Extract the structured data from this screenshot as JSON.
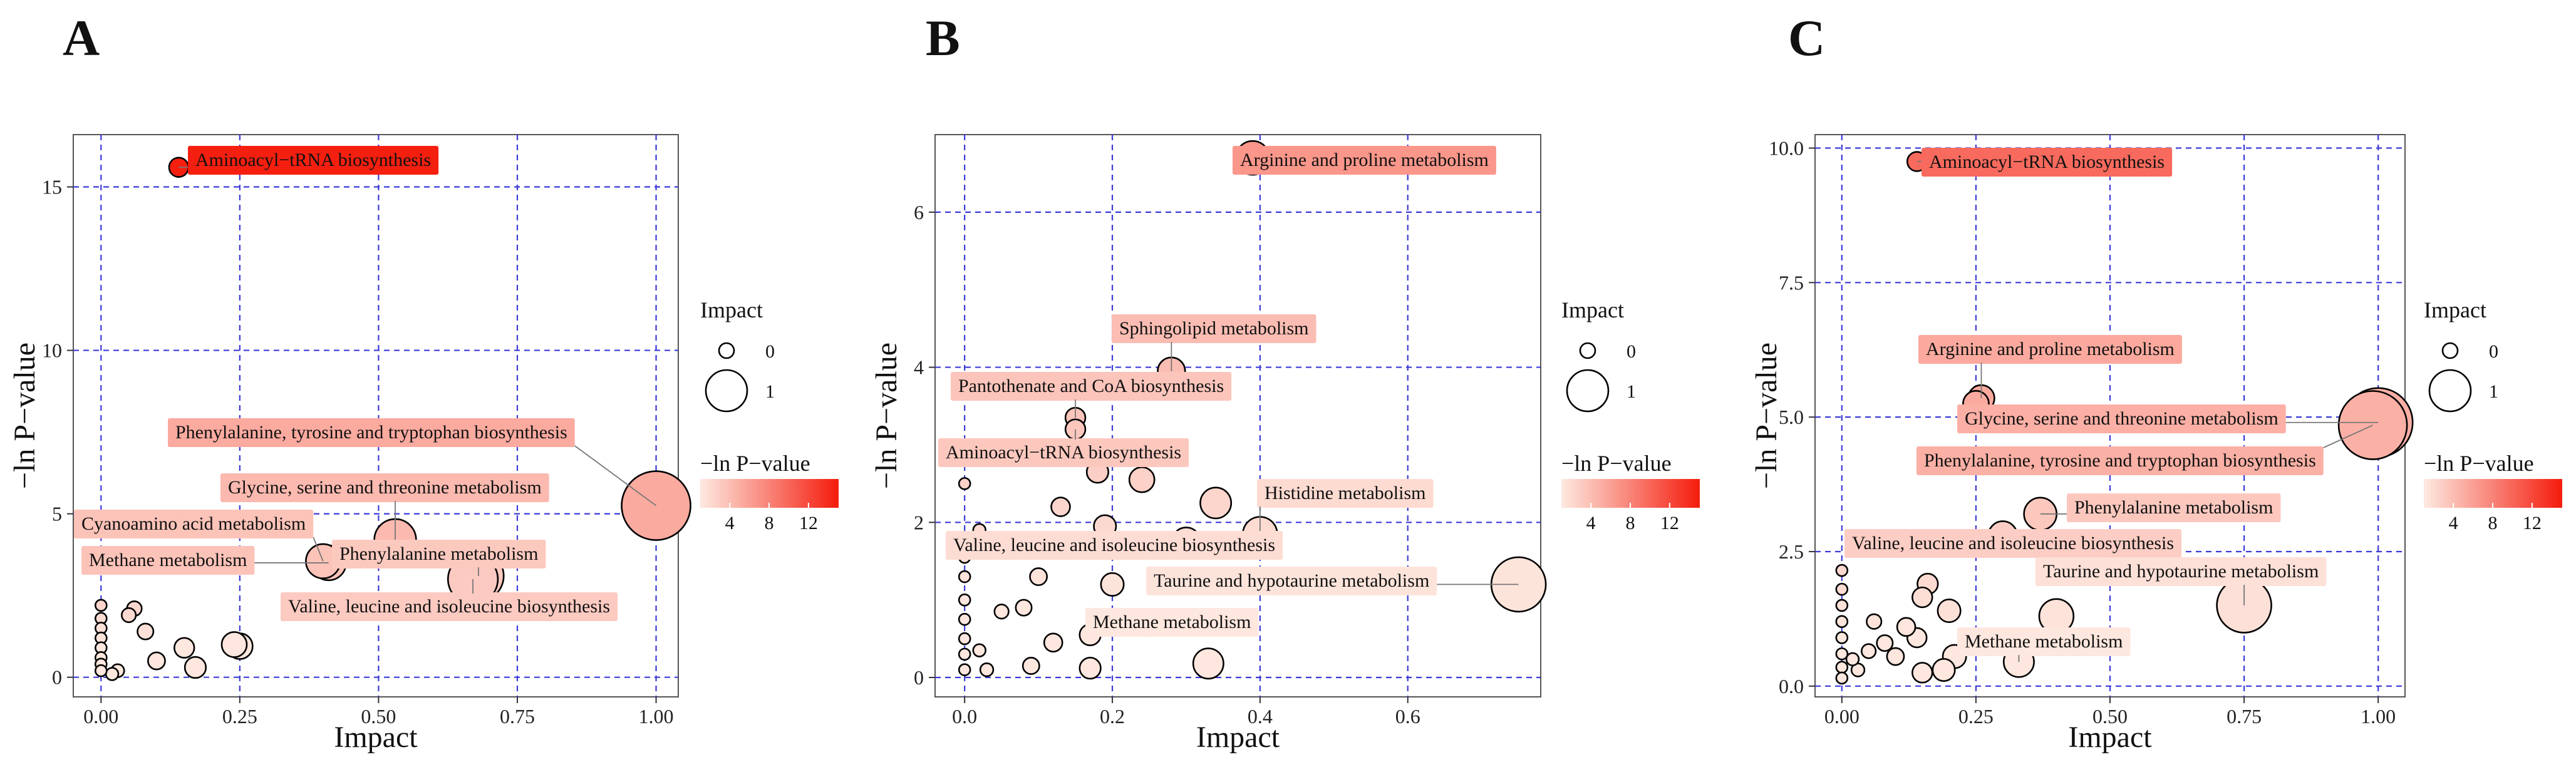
{
  "figure": {
    "legend_size_title": "Impact",
    "legend_color_title": "−ln P−value",
    "colors": {
      "low": "#fde7de",
      "high": "#f51f10",
      "grid": "#3a3ad8",
      "border": "#555555",
      "point_stroke": "#000000"
    }
  },
  "chart_data": [
    {
      "panel": "A",
      "type": "scatter",
      "xlabel": "Impact",
      "ylabel": "−ln P−value",
      "xlim": [
        -0.05,
        1.04
      ],
      "ylim": [
        -0.6,
        16.6
      ],
      "xticks": [
        0,
        0.25,
        0.5,
        0.75,
        1
      ],
      "xtick_labels": [
        "0.00",
        "0.25",
        "0.50",
        "0.75",
        "1.00"
      ],
      "yticks": [
        0,
        5,
        10,
        15
      ],
      "ytick_labels": [
        "0",
        "5",
        "10",
        "15"
      ],
      "size_legend": {
        "values": [
          0,
          1
        ],
        "labels": [
          "0",
          "1"
        ]
      },
      "color_legend": {
        "min": 1,
        "max": 15,
        "ticks": [
          4,
          8,
          12
        ],
        "labels": [
          "4",
          "8",
          "12"
        ]
      },
      "points": [
        {
          "x": 0.14,
          "y": 15.6,
          "label": "Aminoacyl−tRNA biosynthesis"
        },
        {
          "x": 1.0,
          "y": 5.25,
          "label": "Phenylalanine, tyrosine and tryptophan biosynthesis"
        },
        {
          "x": 0.53,
          "y": 4.2,
          "label": "Glycine, serine and threonine metabolism"
        },
        {
          "x": 0.4,
          "y": 3.55,
          "label": "Cyanoamino acid metabolism"
        },
        {
          "x": 0.41,
          "y": 3.5,
          "label": "Methane metabolism"
        },
        {
          "x": 0.68,
          "y": 3.1,
          "label": "Phenylalanine metabolism"
        },
        {
          "x": 0.67,
          "y": 3.0,
          "label": "Valine, leucine and isoleucine biosynthesis"
        },
        {
          "x": 0.06,
          "y": 2.1
        },
        {
          "x": 0.05,
          "y": 1.9
        },
        {
          "x": 0.08,
          "y": 1.4
        },
        {
          "x": 0.15,
          "y": 0.9
        },
        {
          "x": 0.24,
          "y": 1.0
        },
        {
          "x": 0.25,
          "y": 0.95
        },
        {
          "x": 0.1,
          "y": 0.5
        },
        {
          "x": 0.17,
          "y": 0.3
        },
        {
          "x": 0.03,
          "y": 0.2
        },
        {
          "x": 0.02,
          "y": 0.1
        },
        {
          "x": 0.0,
          "y": 2.2
        },
        {
          "x": 0.0,
          "y": 1.8
        },
        {
          "x": 0.0,
          "y": 1.5
        },
        {
          "x": 0.0,
          "y": 1.2
        },
        {
          "x": 0.0,
          "y": 0.9
        },
        {
          "x": 0.0,
          "y": 0.6
        },
        {
          "x": 0.0,
          "y": 0.4
        },
        {
          "x": 0.0,
          "y": 0.2
        }
      ]
    },
    {
      "panel": "B",
      "type": "scatter",
      "xlabel": "Impact",
      "ylabel": "−ln P−value",
      "xlim": [
        -0.04,
        0.78
      ],
      "ylim": [
        -0.25,
        7.0
      ],
      "xticks": [
        0,
        0.2,
        0.4,
        0.6
      ],
      "xtick_labels": [
        "0.0",
        "0.2",
        "0.4",
        "0.6"
      ],
      "yticks": [
        0,
        2,
        4,
        6
      ],
      "ytick_labels": [
        "0",
        "2",
        "4",
        "6"
      ],
      "size_legend": {
        "values": [
          0,
          1
        ],
        "labels": [
          "0",
          "1"
        ]
      },
      "color_legend": {
        "min": 1,
        "max": 15,
        "ticks": [
          4,
          8,
          12
        ],
        "labels": [
          "4",
          "8",
          "12"
        ]
      },
      "points": [
        {
          "x": 0.39,
          "y": 6.7,
          "label": "Arginine and proline metabolism"
        },
        {
          "x": 0.28,
          "y": 3.95,
          "label": "Sphingolipid metabolism"
        },
        {
          "x": 0.15,
          "y": 3.35,
          "label": "Pantothenate and CoA biosynthesis"
        },
        {
          "x": 0.15,
          "y": 3.2,
          "label": "Aminoacyl−tRNA biosynthesis"
        },
        {
          "x": 0.4,
          "y": 1.85,
          "label": "Histidine metabolism"
        },
        {
          "x": 0.3,
          "y": 1.75,
          "label": "Valine, leucine and isoleucine biosynthesis"
        },
        {
          "x": 0.75,
          "y": 1.2,
          "label": "Taurine and hypotaurine metabolism"
        },
        {
          "x": 0.17,
          "y": 0.55,
          "label": "Methane metabolism"
        },
        {
          "x": 0.24,
          "y": 2.55
        },
        {
          "x": 0.18,
          "y": 2.65
        },
        {
          "x": 0.34,
          "y": 2.25
        },
        {
          "x": 0.13,
          "y": 2.2
        },
        {
          "x": 0.02,
          "y": 1.9
        },
        {
          "x": 0.07,
          "y": 1.65
        },
        {
          "x": 0.19,
          "y": 1.95
        },
        {
          "x": 0.1,
          "y": 1.3
        },
        {
          "x": 0.08,
          "y": 0.9
        },
        {
          "x": 0.05,
          "y": 0.85
        },
        {
          "x": 0.2,
          "y": 1.2
        },
        {
          "x": 0.25,
          "y": 0.7
        },
        {
          "x": 0.12,
          "y": 0.45
        },
        {
          "x": 0.02,
          "y": 0.35
        },
        {
          "x": 0.09,
          "y": 0.15
        },
        {
          "x": 0.17,
          "y": 0.12
        },
        {
          "x": 0.03,
          "y": 0.1
        },
        {
          "x": 0.33,
          "y": 0.18
        },
        {
          "x": 0.0,
          "y": 2.5
        },
        {
          "x": 0.0,
          "y": 1.8
        },
        {
          "x": 0.0,
          "y": 1.55
        },
        {
          "x": 0.0,
          "y": 1.3
        },
        {
          "x": 0.0,
          "y": 1.0
        },
        {
          "x": 0.0,
          "y": 0.75
        },
        {
          "x": 0.0,
          "y": 0.5
        },
        {
          "x": 0.0,
          "y": 0.3
        },
        {
          "x": 0.0,
          "y": 0.1
        }
      ]
    },
    {
      "panel": "C",
      "type": "scatter",
      "xlabel": "Impact",
      "ylabel": "−ln P−value",
      "xlim": [
        -0.05,
        1.05
      ],
      "ylim": [
        -0.2,
        10.25
      ],
      "xticks": [
        0,
        0.25,
        0.5,
        0.75,
        1
      ],
      "xtick_labels": [
        "0.00",
        "0.25",
        "0.50",
        "0.75",
        "1.00"
      ],
      "yticks": [
        0,
        2.5,
        5,
        7.5,
        10
      ],
      "ytick_labels": [
        "0.0",
        "2.5",
        "5.0",
        "7.5",
        "10.0"
      ],
      "size_legend": {
        "values": [
          0,
          1
        ],
        "labels": [
          "0",
          "1"
        ]
      },
      "color_legend": {
        "min": 1,
        "max": 15,
        "ticks": [
          4,
          8,
          12
        ],
        "labels": [
          "4",
          "8",
          "12"
        ]
      },
      "points": [
        {
          "x": 0.14,
          "y": 9.75,
          "label": "Aminoacyl−tRNA biosynthesis"
        },
        {
          "x": 0.26,
          "y": 5.35,
          "label": "Arginine and proline metabolism"
        },
        {
          "x": 0.25,
          "y": 5.25
        },
        {
          "x": 1.0,
          "y": 4.9,
          "label": "Glycine, serine and threonine metabolism"
        },
        {
          "x": 0.99,
          "y": 4.85,
          "label": "Phenylalanine, tyrosine and tryptophan biosynthesis"
        },
        {
          "x": 0.37,
          "y": 3.2,
          "label": "Phenylalanine metabolism"
        },
        {
          "x": 0.3,
          "y": 2.8,
          "label": "Valine, leucine and isoleucine biosynthesis"
        },
        {
          "x": 0.75,
          "y": 1.5,
          "label": "Taurine and hypotaurine metabolism"
        },
        {
          "x": 0.33,
          "y": 0.45,
          "label": "Methane metabolism"
        },
        {
          "x": 0.4,
          "y": 1.3
        },
        {
          "x": 0.15,
          "y": 1.65
        },
        {
          "x": 0.16,
          "y": 1.9
        },
        {
          "x": 0.2,
          "y": 1.4
        },
        {
          "x": 0.12,
          "y": 1.1
        },
        {
          "x": 0.06,
          "y": 1.2
        },
        {
          "x": 0.08,
          "y": 0.8
        },
        {
          "x": 0.14,
          "y": 0.9
        },
        {
          "x": 0.05,
          "y": 0.65
        },
        {
          "x": 0.02,
          "y": 0.5
        },
        {
          "x": 0.03,
          "y": 0.3
        },
        {
          "x": 0.1,
          "y": 0.55
        },
        {
          "x": 0.21,
          "y": 0.55
        },
        {
          "x": 0.15,
          "y": 0.25
        },
        {
          "x": 0.19,
          "y": 0.3
        },
        {
          "x": 0.0,
          "y": 2.15
        },
        {
          "x": 0.0,
          "y": 1.8
        },
        {
          "x": 0.0,
          "y": 1.5
        },
        {
          "x": 0.0,
          "y": 1.2
        },
        {
          "x": 0.0,
          "y": 0.9
        },
        {
          "x": 0.0,
          "y": 0.6
        },
        {
          "x": 0.0,
          "y": 0.35
        },
        {
          "x": 0.0,
          "y": 0.15
        }
      ]
    }
  ]
}
